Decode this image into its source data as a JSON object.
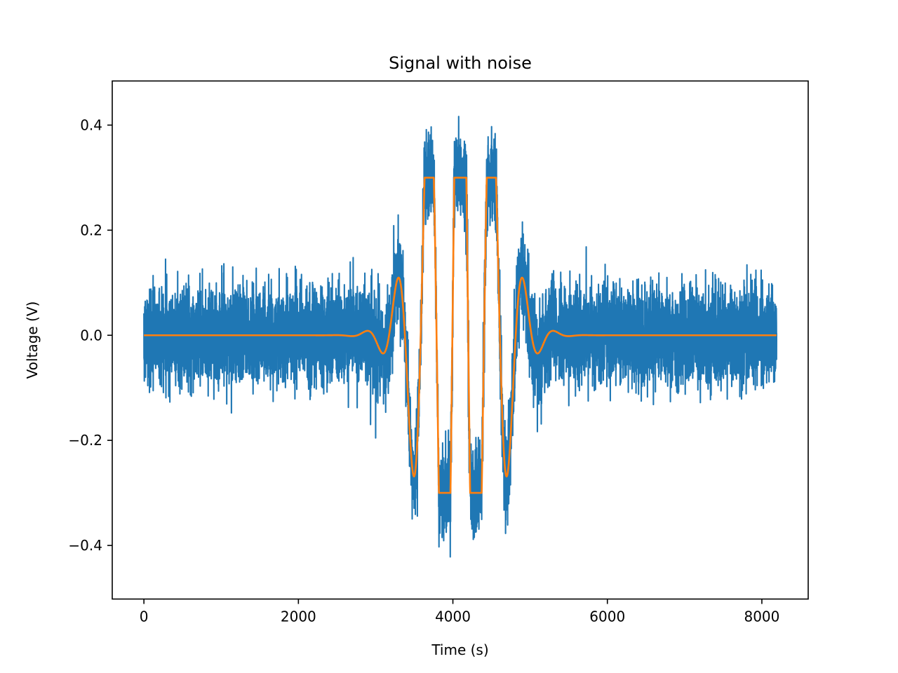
{
  "chart_data": {
    "type": "line",
    "title": "Signal with noise",
    "xlabel": "Time (s)",
    "ylabel": "Voltage (V)",
    "xlim": [
      -410,
      8600
    ],
    "ylim": [
      -0.502,
      0.484
    ],
    "x_ticks": [
      0,
      2000,
      4000,
      6000,
      8000
    ],
    "x_tick_labels": [
      "0",
      "2000",
      "4000",
      "6000",
      "8000"
    ],
    "y_ticks": [
      -0.4,
      -0.2,
      0.0,
      0.2,
      0.4
    ],
    "y_tick_labels": [
      "−0.4",
      "−0.2",
      "0.0",
      "0.2",
      "0.4"
    ],
    "grid": false,
    "legend": "none",
    "n_samples": 8192,
    "series": [
      {
        "color": "#1f77b4",
        "description": "noisy signal: clean signal plus random noise (std approx 0.045, extremes approx ±0.17 outside the burst, approx ±0.46 inside the burst)",
        "noise_std": 0.045
      },
      {
        "color": "#ff7f0e",
        "description": "clean signal: Gaussian-windowed sinusoid centred at 4096 clipped at ±0.3, zero elsewhere",
        "center": 4096,
        "amplitude_unclipped": 0.85,
        "gaussian_sigma": 400,
        "period": 410,
        "clip": 0.3
      }
    ]
  }
}
